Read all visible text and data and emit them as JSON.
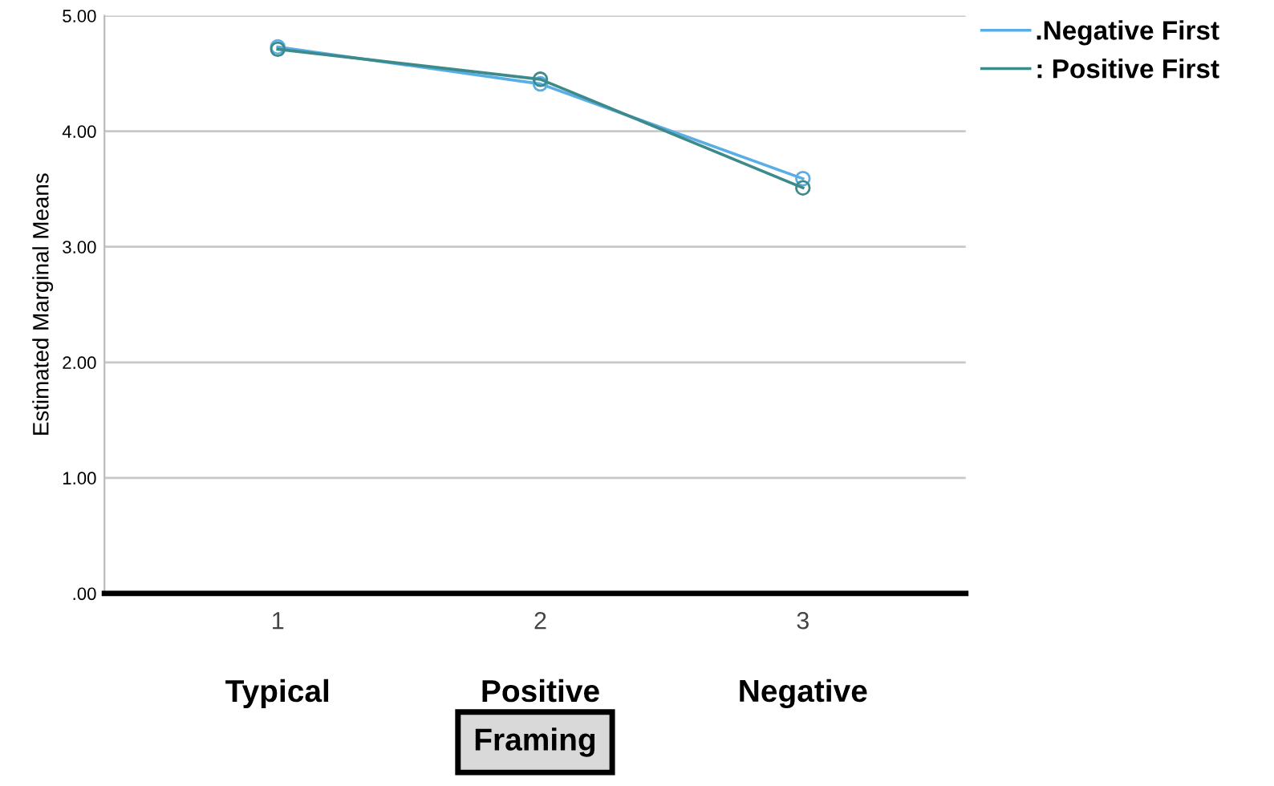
{
  "chart_data": {
    "type": "line",
    "ylabel": "Estimated Marginal Means",
    "xlabel": "Framing",
    "categories": [
      "1",
      "2",
      "3"
    ],
    "annotations": [
      "Typical",
      "Positive",
      "Negative"
    ],
    "series": [
      {
        "name": ".Negative First",
        "color": "#5aaee6",
        "values": [
          4.73,
          4.41,
          3.59
        ]
      },
      {
        "name": ": Positive First",
        "color": "#3d8a8a",
        "values": [
          4.71,
          4.45,
          3.51
        ]
      }
    ],
    "ylim": [
      0,
      5
    ],
    "yticks": [
      {
        "value": 0,
        "label": ".00"
      },
      {
        "value": 1,
        "label": "1.00"
      },
      {
        "value": 2,
        "label": "2.00"
      },
      {
        "value": 3,
        "label": "3.00"
      },
      {
        "value": 4,
        "label": "4.00"
      },
      {
        "value": 5,
        "label": "5.00"
      }
    ],
    "grid": "y",
    "legend": "top right",
    "marker": "circle",
    "line_style": "solid"
  }
}
